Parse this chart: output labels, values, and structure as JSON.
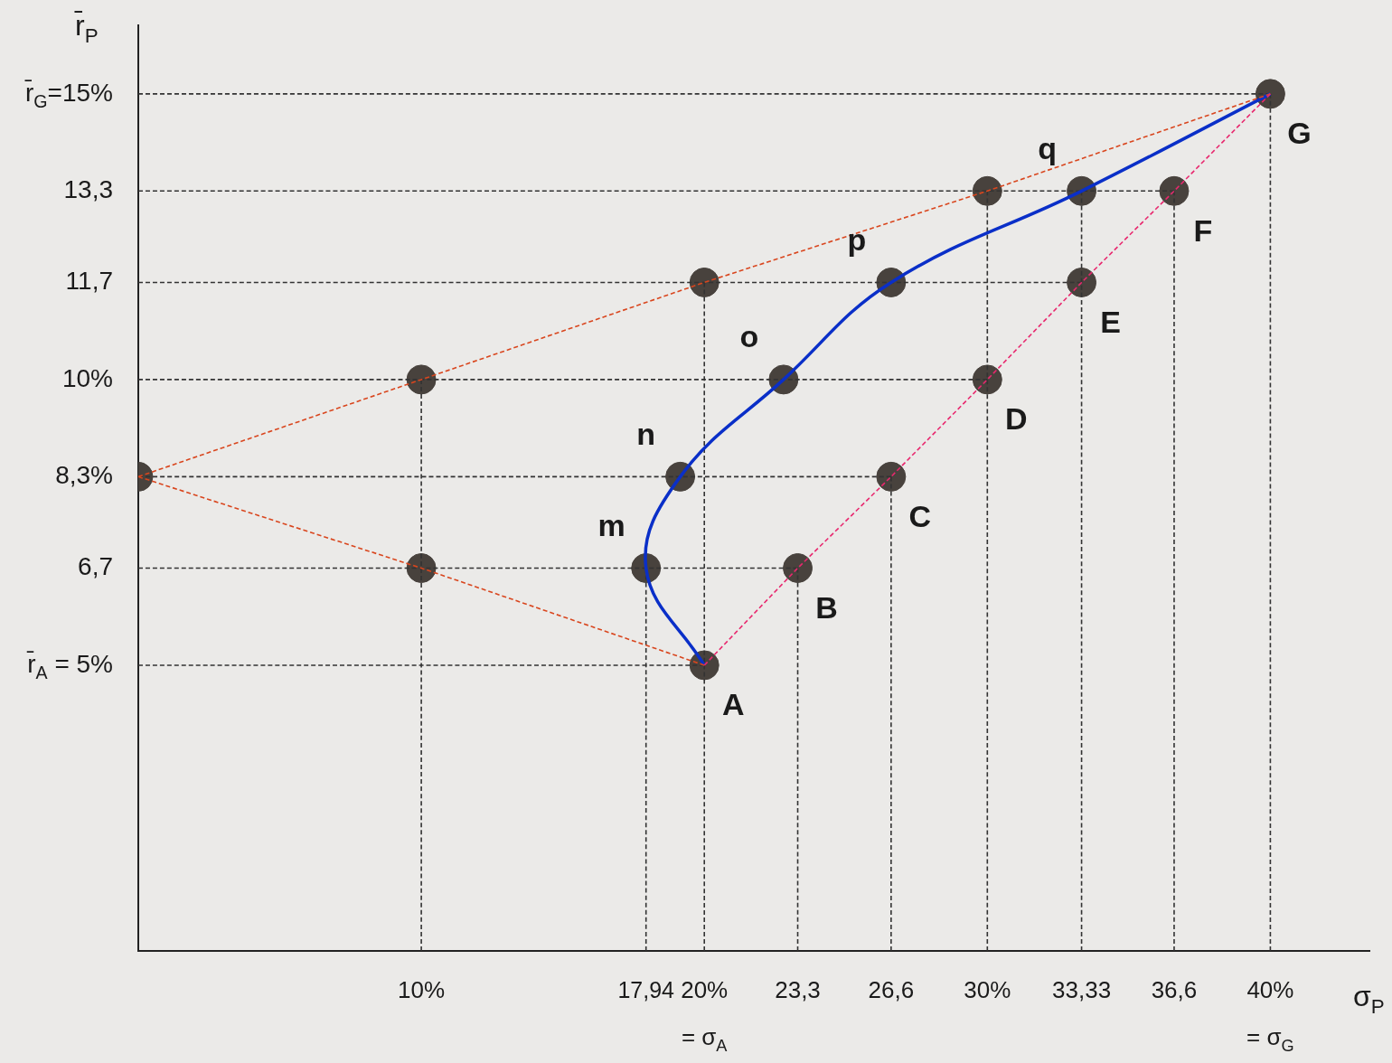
{
  "chart_data": {
    "type": "line",
    "xlabel": "σ$_{P}$",
    "ylabel": "r̄$_{P}$",
    "grid": false,
    "xlim": [
      0,
      43.5
    ],
    "ylim": [
      0,
      16.2
    ],
    "xticks": [
      {
        "value": 10,
        "label": "10%"
      },
      {
        "value": 17.94,
        "label": "17,94"
      },
      {
        "value": 20,
        "label": "20%\n= σ$_{A}$"
      },
      {
        "value": 23.3,
        "label": "23,3"
      },
      {
        "value": 26.6,
        "label": "26,6"
      },
      {
        "value": 30,
        "label": "30%"
      },
      {
        "value": 33.33,
        "label": "33,33"
      },
      {
        "value": 36.6,
        "label": "36,6"
      },
      {
        "value": 40,
        "label": "40%\n= σ$_{G}$"
      }
    ],
    "yticks": [
      {
        "value": 5,
        "label": "r̄$_{A}$ = 5%"
      },
      {
        "value": 6.7,
        "label": "6,7"
      },
      {
        "value": 8.3,
        "label": "8,3%"
      },
      {
        "value": 10,
        "label": "10%"
      },
      {
        "value": 11.7,
        "label": "11,7"
      },
      {
        "value": 13.3,
        "label": "13,3"
      },
      {
        "value": 15,
        "label": "r̄$_{G}$=15%"
      }
    ],
    "series": [
      {
        "type": "line",
        "color": "#e8286e",
        "line_style": "dashed",
        "marker": "none",
        "x": [
          20,
          23.3,
          26.6,
          30,
          33.33,
          36.6,
          40
        ],
        "values": [
          5,
          6.7,
          8.3,
          10,
          11.7,
          13.3,
          15
        ]
      },
      {
        "type": "line",
        "color": "#d9461e",
        "line_style": "dashed",
        "marker": "none",
        "x": [
          0,
          10,
          20,
          30,
          40
        ],
        "values": [
          8.3,
          10,
          11.7,
          13.3,
          15
        ]
      },
      {
        "type": "line",
        "color": "#d9461e",
        "line_style": "dashed",
        "marker": "none",
        "x": [
          0,
          10,
          20
        ],
        "values": [
          8.3,
          6.7,
          5
        ]
      },
      {
        "type": "line",
        "color": "#0a2fc8",
        "line_style": "solid",
        "marker": "none",
        "x": [
          20,
          17.94,
          19.15,
          22.8,
          26.6,
          33.33,
          40
        ],
        "values": [
          5,
          6.7,
          8.3,
          10,
          11.7,
          13.3,
          15
        ]
      },
      {
        "type": "line",
        "color": "#333333",
        "line_style": "dashed",
        "marker": "none",
        "x": [
          0,
          40
        ],
        "values": [
          15,
          15
        ]
      },
      {
        "type": "line",
        "color": "#333333",
        "line_style": "dashed",
        "marker": "none",
        "x": [
          0,
          36.6
        ],
        "values": [
          13.3,
          13.3
        ]
      },
      {
        "type": "line",
        "color": "#333333",
        "line_style": "dashed",
        "marker": "none",
        "x": [
          0,
          33.33
        ],
        "values": [
          11.7,
          11.7
        ]
      },
      {
        "type": "line",
        "color": "#333333",
        "line_style": "dashed",
        "marker": "none",
        "x": [
          0,
          30
        ],
        "values": [
          10,
          10
        ]
      },
      {
        "type": "line",
        "color": "#333333",
        "line_style": "dashed",
        "marker": "none",
        "x": [
          0,
          26.6
        ],
        "values": [
          8.3,
          8.3
        ]
      },
      {
        "type": "line",
        "color": "#333333",
        "line_style": "dashed",
        "marker": "none",
        "x": [
          0,
          23.3
        ],
        "values": [
          6.7,
          6.7
        ]
      },
      {
        "type": "line",
        "color": "#333333",
        "line_style": "dashed",
        "marker": "none",
        "x": [
          0,
          20
        ],
        "values": [
          5,
          5
        ]
      },
      {
        "type": "line",
        "color": "#333333",
        "line_style": "dashed",
        "marker": "none",
        "x": [
          10,
          10
        ],
        "values": [
          0,
          10
        ]
      },
      {
        "type": "line",
        "color": "#333333",
        "line_style": "dashed",
        "marker": "none",
        "x": [
          17.94,
          17.94
        ],
        "values": [
          0,
          6.7
        ]
      },
      {
        "type": "line",
        "color": "#333333",
        "line_style": "dashed",
        "marker": "none",
        "x": [
          20,
          20
        ],
        "values": [
          0,
          11.7
        ]
      },
      {
        "type": "line",
        "color": "#333333",
        "line_style": "dashed",
        "marker": "none",
        "x": [
          23.3,
          23.3
        ],
        "values": [
          0,
          6.7
        ]
      },
      {
        "type": "line",
        "color": "#333333",
        "line_style": "dashed",
        "marker": "none",
        "x": [
          26.6,
          26.6
        ],
        "values": [
          0,
          8.3
        ]
      },
      {
        "type": "line",
        "color": "#333333",
        "line_style": "dashed",
        "marker": "none",
        "x": [
          30,
          30
        ],
        "values": [
          0,
          13.3
        ]
      },
      {
        "type": "line",
        "color": "#333333",
        "line_style": "dashed",
        "marker": "none",
        "x": [
          33.33,
          33.33
        ],
        "values": [
          0,
          13.3
        ]
      },
      {
        "type": "line",
        "color": "#333333",
        "line_style": "dashed",
        "marker": "none",
        "x": [
          36.6,
          36.6
        ],
        "values": [
          0,
          13.3
        ]
      },
      {
        "type": "line",
        "color": "#333333",
        "line_style": "dashed",
        "marker": "none",
        "x": [
          40,
          40
        ],
        "values": [
          0,
          15
        ]
      },
      {
        "type": "scatter",
        "color": "#48423d",
        "marker": "circle",
        "x": [
          0,
          10,
          10,
          20,
          30,
          20,
          23.3,
          26.6,
          30,
          33.33,
          36.6,
          40,
          17.94,
          19.15,
          22.8,
          26.6,
          33.33
        ],
        "values": [
          8.3,
          10,
          6.7,
          11.7,
          13.3,
          5,
          6.7,
          8.3,
          10,
          11.7,
          13.3,
          15,
          6.7,
          8.3,
          10,
          11.7,
          13.3
        ]
      }
    ],
    "annotations": [
      {
        "text": "A",
        "x": 20,
        "y": 5
      },
      {
        "text": "B",
        "x": 23.3,
        "y": 6.7
      },
      {
        "text": "C",
        "x": 26.6,
        "y": 8.3
      },
      {
        "text": "D",
        "x": 30,
        "y": 10
      },
      {
        "text": "E",
        "x": 33.33,
        "y": 11.7
      },
      {
        "text": "F",
        "x": 36.6,
        "y": 13.3
      },
      {
        "text": "G",
        "x": 40,
        "y": 15
      },
      {
        "text": "m",
        "x": 17.94,
        "y": 6.7
      },
      {
        "text": "n",
        "x": 19.15,
        "y": 8.3
      },
      {
        "text": "o",
        "x": 22.8,
        "y": 10
      },
      {
        "text": "p",
        "x": 26.6,
        "y": 11.7
      },
      {
        "text": "q",
        "x": 33.33,
        "y": 13.3
      }
    ]
  }
}
